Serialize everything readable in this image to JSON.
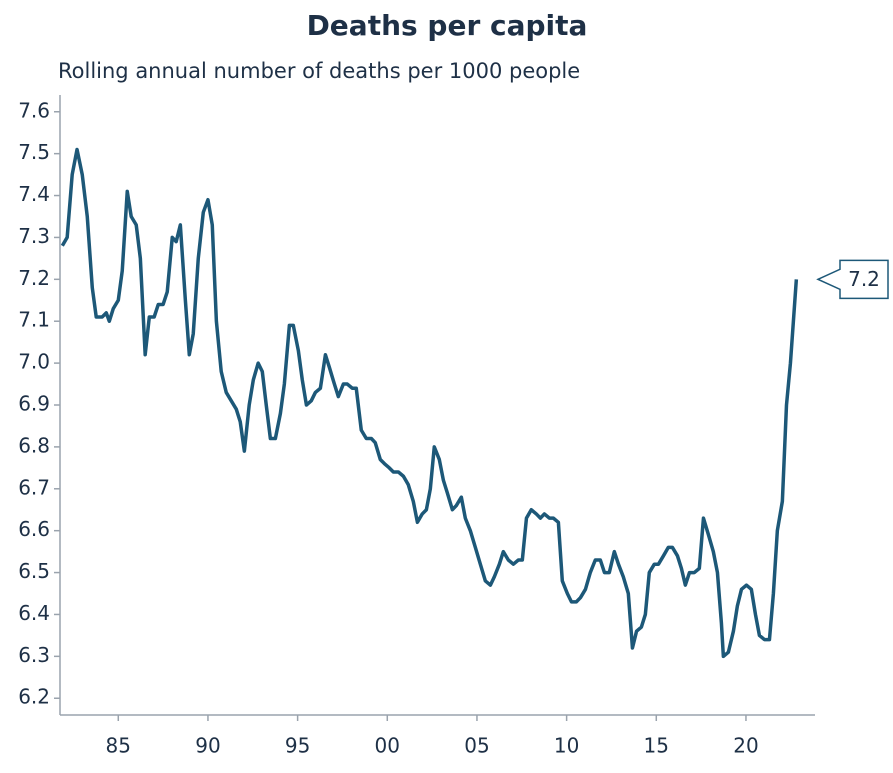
{
  "chart_data": {
    "type": "line",
    "title": "Deaths per capita",
    "subtitle": "Rolling annual number of deaths per 1000 people",
    "x": [
      1981.88,
      1982.15,
      1982.43,
      1982.7,
      1982.99,
      1983.27,
      1983.55,
      1983.77,
      1984.1,
      1984.33,
      1984.5,
      1984.72,
      1985,
      1985.22,
      1985.5,
      1985.72,
      1986,
      1986.23,
      1986.5,
      1986.73,
      1987,
      1987.23,
      1987.5,
      1987.73,
      1988.01,
      1988.23,
      1988.46,
      1988.74,
      1988.96,
      1989.18,
      1989.46,
      1989.74,
      1990,
      1990.24,
      1990.47,
      1990.74,
      1991.02,
      1991.3,
      1991.58,
      1991.8,
      1992.03,
      1992.3,
      1992.53,
      1992.8,
      1993.03,
      1993.25,
      1993.48,
      1993.76,
      1994.04,
      1994.26,
      1994.54,
      1994.76,
      1995.04,
      1995.26,
      1995.49,
      1995.76,
      1995.99,
      1996.27,
      1996.55,
      1996.77,
      1997.05,
      1997.27,
      1997.55,
      1997.77,
      1998.05,
      1998.27,
      1998.55,
      1998.83,
      1999.11,
      1999.33,
      1999.61,
      1999.84,
      2000.11,
      2000.34,
      2000.62,
      2000.9,
      2001.17,
      2001.45,
      2001.68,
      2001.95,
      2002.18,
      2002.4,
      2002.62,
      2002.9,
      2003.13,
      2003.35,
      2003.63,
      2003.85,
      2004.13,
      2004.35,
      2004.63,
      2004.91,
      2005.19,
      2005.47,
      2005.75,
      2005.97,
      2006.25,
      2006.47,
      2006.75,
      2007.03,
      2007.31,
      2007.53,
      2007.76,
      2008.03,
      2008.31,
      2008.54,
      2008.76,
      2009.04,
      2009.26,
      2009.54,
      2009.76,
      2010.04,
      2010.27,
      2010.54,
      2010.77,
      2011.05,
      2011.32,
      2011.6,
      2011.88,
      2012.11,
      2012.38,
      2012.66,
      2012.89,
      2013.16,
      2013.44,
      2013.67,
      2013.9,
      2014.17,
      2014.39,
      2014.61,
      2014.89,
      2015.12,
      2015.4,
      2015.67,
      2015.9,
      2016.18,
      2016.4,
      2016.62,
      2016.85,
      2017.12,
      2017.4,
      2017.63,
      2017.91,
      2018.18,
      2018.41,
      2018.63,
      2018.74,
      2019.02,
      2019.3,
      2019.52,
      2019.75,
      2020.03,
      2020.3,
      2020.53,
      2020.75,
      2021.03,
      2021.31,
      2021.53,
      2021.75,
      2022.03,
      2022.26,
      2022.48,
      2022.81
    ],
    "values": [
      7.28,
      7.3,
      7.45,
      7.51,
      7.45,
      7.35,
      7.18,
      7.11,
      7.11,
      7.12,
      7.1,
      7.13,
      7.15,
      7.22,
      7.41,
      7.35,
      7.33,
      7.25,
      7.02,
      7.11,
      7.11,
      7.14,
      7.14,
      7.17,
      7.3,
      7.29,
      7.33,
      7.15,
      7.02,
      7.07,
      7.25,
      7.36,
      7.39,
      7.33,
      7.1,
      6.98,
      6.93,
      6.91,
      6.89,
      6.86,
      6.79,
      6.9,
      6.96,
      7.0,
      6.98,
      6.9,
      6.82,
      6.82,
      6.88,
      6.95,
      7.09,
      7.09,
      7.03,
      6.96,
      6.9,
      6.91,
      6.93,
      6.94,
      7.02,
      6.99,
      6.95,
      6.92,
      6.95,
      6.95,
      6.94,
      6.94,
      6.84,
      6.82,
      6.82,
      6.81,
      6.77,
      6.76,
      6.75,
      6.74,
      6.74,
      6.73,
      6.71,
      6.67,
      6.62,
      6.64,
      6.65,
      6.7,
      6.8,
      6.77,
      6.72,
      6.69,
      6.65,
      6.66,
      6.68,
      6.63,
      6.6,
      6.56,
      6.52,
      6.48,
      6.47,
      6.49,
      6.52,
      6.55,
      6.53,
      6.52,
      6.53,
      6.53,
      6.63,
      6.65,
      6.64,
      6.63,
      6.64,
      6.63,
      6.63,
      6.62,
      6.48,
      6.45,
      6.43,
      6.43,
      6.44,
      6.46,
      6.5,
      6.53,
      6.53,
      6.5,
      6.5,
      6.55,
      6.52,
      6.49,
      6.45,
      6.32,
      6.36,
      6.37,
      6.4,
      6.5,
      6.52,
      6.52,
      6.54,
      6.56,
      6.56,
      6.54,
      6.51,
      6.47,
      6.5,
      6.5,
      6.51,
      6.63,
      6.59,
      6.55,
      6.5,
      6.38,
      6.3,
      6.31,
      6.36,
      6.42,
      6.46,
      6.47,
      6.46,
      6.4,
      6.35,
      6.34,
      6.34,
      6.45,
      6.6,
      6.67,
      6.9,
      7.0,
      7.2
    ],
    "color": "#1d5878",
    "callout": 7.2,
    "xlim": [
      1981.75,
      2023.85
    ],
    "xticks": [
      {
        "value": 1985,
        "label": "85"
      },
      {
        "value": 1990,
        "label": "90"
      },
      {
        "value": 1995,
        "label": "95"
      },
      {
        "value": 2000,
        "label": "00"
      },
      {
        "value": 2005,
        "label": "05"
      },
      {
        "value": 2010,
        "label": "10"
      },
      {
        "value": 2015,
        "label": "15"
      },
      {
        "value": 2020,
        "label": "20"
      }
    ],
    "ylim": [
      6.16,
      7.64
    ],
    "yticks": [
      6.2,
      6.3,
      6.4,
      6.5,
      6.6,
      6.7,
      6.8,
      6.9,
      {
        "value": 7,
        "label": "7.0"
      },
      7.1,
      7.2,
      7.3,
      7.4,
      7.5,
      7.6
    ],
    "grid": false
  }
}
